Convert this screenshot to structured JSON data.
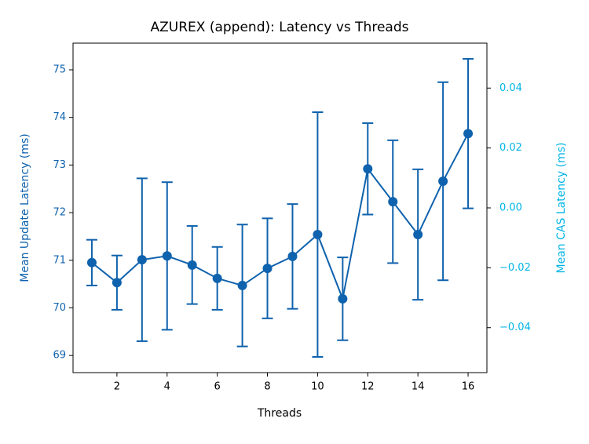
{
  "chart_data": {
    "type": "errorbar-line",
    "title": "AZUREX (append): Latency vs Threads",
    "x_label": "Threads",
    "y_label": "Mean Update Latency (ms)",
    "y2_label": "Mean CAS Latency (ms)",
    "x": [
      1,
      2,
      3,
      4,
      5,
      6,
      7,
      8,
      9,
      10,
      11,
      12,
      13,
      14,
      15,
      16
    ],
    "series": [
      {
        "name": "Mean Update Latency",
        "color": "#0f62ad",
        "values": [
          70.95,
          70.53,
          71.01,
          71.09,
          70.9,
          70.62,
          70.47,
          70.83,
          71.08,
          71.54,
          70.19,
          72.92,
          72.23,
          71.54,
          72.66,
          73.66
        ],
        "errors": [
          0.48,
          0.57,
          1.71,
          1.55,
          0.82,
          0.66,
          1.28,
          1.05,
          1.1,
          2.57,
          0.87,
          0.96,
          1.29,
          1.37,
          2.08,
          1.57
        ]
      }
    ],
    "xlim": [
      0.25,
      16.75
    ],
    "xticks": [
      2,
      4,
      6,
      8,
      10,
      12,
      14,
      16
    ],
    "ylim": [
      68.64,
      75.56
    ],
    "yticks": [
      69,
      70,
      71,
      72,
      73,
      74,
      75
    ],
    "y2lim": [
      -0.055,
      0.055
    ],
    "y2ticks": [
      {
        "value": -0.04,
        "label": "−0.04"
      },
      {
        "value": -0.02,
        "label": "−0.02"
      },
      {
        "value": 0,
        "label": "0.00"
      },
      {
        "value": 0.02,
        "label": "0.02"
      },
      {
        "value": 0.04,
        "label": "0.04"
      }
    ],
    "y_color": "#0f62ad",
    "y2_color": "#00b4e6"
  }
}
